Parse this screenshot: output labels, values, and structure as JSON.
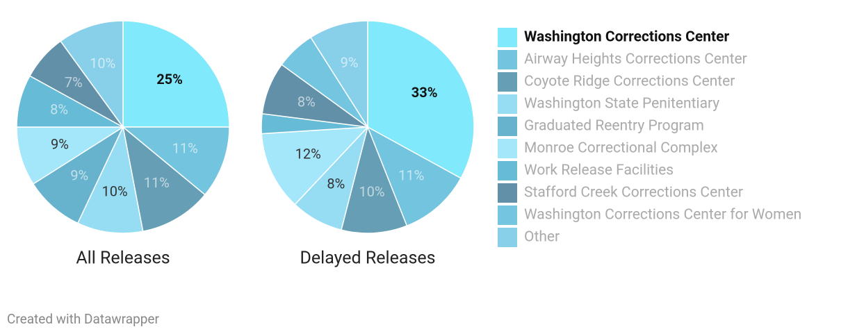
{
  "chart_data": [
    {
      "type": "pie",
      "title": "All Releases",
      "values": [
        25,
        11,
        11,
        10,
        9,
        9,
        8,
        7,
        0,
        10
      ],
      "value_labels": [
        "25%",
        "11%",
        "11%",
        "10%",
        "9%",
        "9%",
        "8%",
        "7%",
        null,
        "10%"
      ]
    },
    {
      "type": "pie",
      "title": "Delayed Releases",
      "values": [
        33,
        11,
        10,
        8,
        0,
        12,
        3,
        8,
        6,
        9
      ],
      "value_labels": [
        "33%",
        "11%",
        "10%",
        "8%",
        null,
        "12%",
        null,
        "8%",
        null,
        "9%"
      ]
    }
  ],
  "legend": {
    "categories": [
      "Washington Corrections Center",
      "Airway Heights Corrections Center",
      "Coyote Ridge Corrections Center",
      "Washington State Penitentiary",
      "Graduated Reentry Program",
      "Monroe Correctional Complex",
      "Work Release Facilities",
      "Stafford Creek Corrections Center",
      "Washington Corrections Center for Women",
      "Other"
    ],
    "colors": [
      "#80e9fb",
      "#73c4df",
      "#659eb5",
      "#96dcf3",
      "#67b2cc",
      "#a4e6fa",
      "#66bbd6",
      "#6190a8",
      "#74c6e0",
      "#88cfea"
    ],
    "highlight": 0
  },
  "footer": "Created with Datawrapper"
}
